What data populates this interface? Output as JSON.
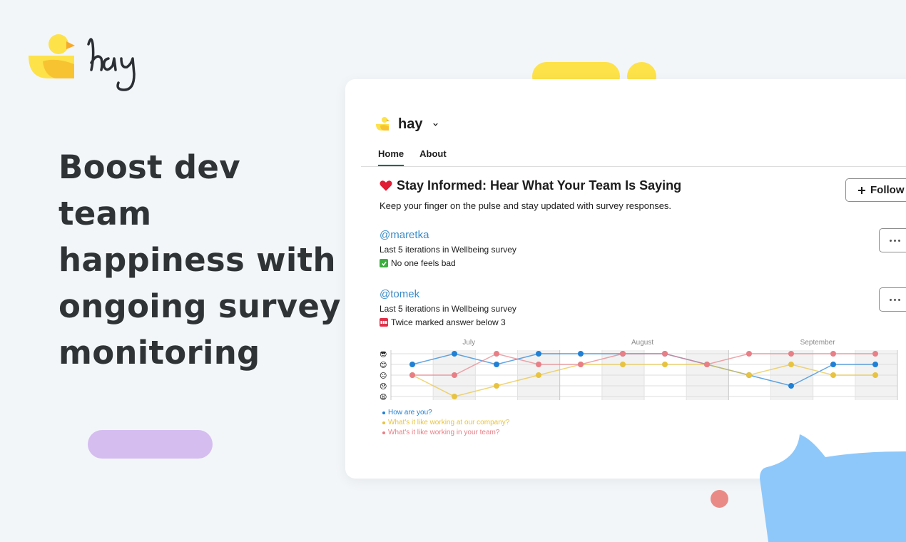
{
  "brand": {
    "name": "hay"
  },
  "headline": "Boost dev team happiness with ongoing survey monitoring",
  "app": {
    "name": "hay",
    "tabs": [
      {
        "label": "Home",
        "active": true
      },
      {
        "label": "About",
        "active": false
      }
    ],
    "section_title": "Stay Informed: Hear What Your Team Is Saying",
    "section_subtitle": "Keep your finger on the pulse and stay updated with survey responses.",
    "follow_label": "Follow",
    "entries": [
      {
        "user": "@maretka",
        "line1": "Last 5 iterations in Wellbeing survey",
        "line2": "No one feels bad",
        "status": "ok"
      },
      {
        "user": "@tomek",
        "line1": "Last 5 iterations in Wellbeing survey",
        "line2": "Twice marked answer below 3",
        "status": "sos"
      }
    ]
  },
  "chart_data": {
    "type": "line",
    "month_labels": [
      "July",
      "August",
      "September"
    ],
    "y_levels": [
      5,
      4,
      3,
      2,
      1
    ],
    "y_icons": [
      "😎",
      "😊",
      "😐",
      "😞",
      "😩"
    ],
    "x": [
      0,
      1,
      2,
      3,
      4,
      5,
      6,
      7,
      8,
      9,
      10,
      11
    ],
    "series": [
      {
        "name": "How are you?",
        "color": "#1f80d5",
        "values": [
          4,
          5,
          4,
          5,
          5,
          5,
          5,
          4,
          3,
          2,
          4,
          4
        ]
      },
      {
        "name": "What's it like working at our company?",
        "color": "#e8c33f",
        "values": [
          3,
          1,
          2,
          3,
          4,
          4,
          4,
          4,
          3,
          4,
          3,
          3
        ]
      },
      {
        "name": "What's it like working in your team?",
        "color": "#e87f86",
        "values": [
          3,
          3,
          5,
          4,
          4,
          5,
          5,
          4,
          5,
          5,
          5,
          5
        ]
      }
    ],
    "ylim": [
      1,
      5
    ],
    "legend_position": "bottom-left"
  }
}
